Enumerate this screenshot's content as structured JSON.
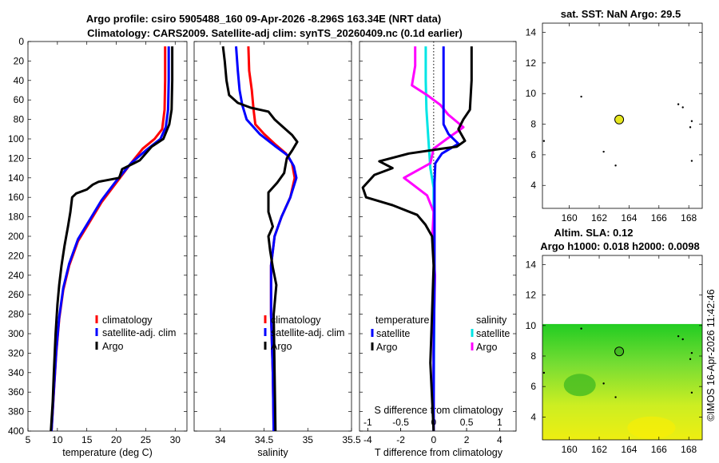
{
  "header": {
    "title1": "Argo profile: csiro 5905488_160 09-Apr-2026 -8.296S 163.34E (NRT data)",
    "title2": "Climatology: CARS2009. Satellite-adj clim: synTS_20260409.nc (0.1d earlier)"
  },
  "side_label": "©IMOS 16-Apr-2026 11:42:46",
  "colors": {
    "climatology": "#ff0000",
    "satellite": "#0000ff",
    "argo": "#000000",
    "sal_satellite": "#00e5e5",
    "sal_argo": "#ff00ff"
  },
  "chart_data": [
    {
      "id": "temperature",
      "type": "line",
      "xlabel": "temperature (deg C)",
      "ylabel": "",
      "xlim": [
        5,
        32
      ],
      "ylim": [
        0,
        400
      ],
      "xticks": [
        "5",
        "10",
        "15",
        "20",
        "25",
        "30"
      ],
      "yticks": [
        "0",
        "20",
        "40",
        "60",
        "80",
        "100",
        "120",
        "140",
        "160",
        "180",
        "200",
        "220",
        "240",
        "260",
        "280",
        "300",
        "320",
        "340",
        "360",
        "380",
        "400"
      ],
      "legend": [
        "climatology",
        "satellite-adj. clim",
        "Argo"
      ],
      "series": [
        {
          "name": "climatology",
          "color": "#ff0000",
          "points": [
            [
              28.3,
              5
            ],
            [
              28.3,
              40
            ],
            [
              28.2,
              70
            ],
            [
              27.8,
              90
            ],
            [
              26.5,
              100
            ],
            [
              24.5,
              110
            ],
            [
              22.5,
              125
            ],
            [
              20,
              145
            ],
            [
              17.5,
              165
            ],
            [
              15.5,
              185
            ],
            [
              13.5,
              205
            ],
            [
              12,
              230
            ],
            [
              11,
              255
            ],
            [
              10.3,
              285
            ],
            [
              9.8,
              320
            ],
            [
              9.4,
              360
            ],
            [
              9.0,
              400
            ]
          ]
        },
        {
          "name": "satellite-adj. clim",
          "color": "#0000ff",
          "points": [
            [
              28.9,
              5
            ],
            [
              28.9,
              40
            ],
            [
              28.8,
              70
            ],
            [
              28.4,
              88
            ],
            [
              27.5,
              100
            ],
            [
              25,
              112
            ],
            [
              22.5,
              125
            ],
            [
              20,
              143
            ],
            [
              17.5,
              163
            ],
            [
              15.5,
              183
            ],
            [
              13.5,
              203
            ],
            [
              12,
              228
            ],
            [
              11,
              253
            ],
            [
              10.3,
              283
            ],
            [
              9.8,
              318
            ],
            [
              9.4,
              358
            ],
            [
              9.0,
              400
            ]
          ]
        },
        {
          "name": "Argo",
          "color": "#000000",
          "points": [
            [
              29.5,
              5
            ],
            [
              29.5,
              40
            ],
            [
              29.4,
              70
            ],
            [
              29,
              85
            ],
            [
              28,
              100
            ],
            [
              26,
              108
            ],
            [
              25,
              115
            ],
            [
              24,
              122
            ],
            [
              23,
              125
            ],
            [
              21,
              131
            ],
            [
              20.5,
              140
            ],
            [
              17,
              144
            ],
            [
              16,
              147
            ],
            [
              15,
              152
            ],
            [
              13.2,
              156
            ],
            [
              12.5,
              160
            ],
            [
              12.2,
              175
            ],
            [
              11.8,
              190
            ],
            [
              11.2,
              210
            ],
            [
              10.7,
              230
            ],
            [
              10.3,
              250
            ],
            [
              10,
              270
            ],
            [
              9.7,
              300
            ],
            [
              9.4,
              340
            ],
            [
              9.2,
              370
            ],
            [
              8.9,
              400
            ]
          ]
        }
      ]
    },
    {
      "id": "salinity",
      "type": "line",
      "xlabel": "salinity",
      "xlim": [
        33.7,
        35.5
      ],
      "ylim": [
        0,
        400
      ],
      "xticks": [
        "34",
        "34.5",
        "35",
        "35.5"
      ],
      "legend": [
        "climatology",
        "satellite-adj. clim",
        "Argo"
      ],
      "series": [
        {
          "name": "climatology",
          "color": "#ff0000",
          "points": [
            [
              34.32,
              5
            ],
            [
              34.33,
              30
            ],
            [
              34.36,
              50
            ],
            [
              34.38,
              70
            ],
            [
              34.4,
              85
            ],
            [
              34.5,
              95
            ],
            [
              34.62,
              105
            ],
            [
              34.75,
              115
            ],
            [
              34.82,
              125
            ],
            [
              34.85,
              140
            ],
            [
              34.8,
              160
            ],
            [
              34.7,
              180
            ],
            [
              34.62,
              200
            ],
            [
              34.58,
              230
            ],
            [
              34.58,
              280
            ],
            [
              34.6,
              340
            ],
            [
              34.61,
              400
            ]
          ]
        },
        {
          "name": "satellite-adj. clim",
          "color": "#0000ff",
          "points": [
            [
              34.18,
              5
            ],
            [
              34.2,
              30
            ],
            [
              34.22,
              50
            ],
            [
              34.25,
              65
            ],
            [
              34.3,
              80
            ],
            [
              34.45,
              95
            ],
            [
              34.62,
              107
            ],
            [
              34.77,
              117
            ],
            [
              34.84,
              128
            ],
            [
              34.87,
              140
            ],
            [
              34.8,
              160
            ],
            [
              34.7,
              180
            ],
            [
              34.62,
              200
            ],
            [
              34.58,
              230
            ],
            [
              34.58,
              280
            ],
            [
              34.6,
              340
            ],
            [
              34.61,
              400
            ]
          ]
        },
        {
          "name": "Argo",
          "color": "#000000",
          "points": [
            [
              34.03,
              5
            ],
            [
              34.05,
              20
            ],
            [
              34.07,
              40
            ],
            [
              34.1,
              55
            ],
            [
              34.2,
              63
            ],
            [
              34.35,
              68
            ],
            [
              34.55,
              72
            ],
            [
              34.62,
              80
            ],
            [
              34.72,
              88
            ],
            [
              34.82,
              96
            ],
            [
              34.88,
              103
            ],
            [
              34.82,
              112
            ],
            [
              34.76,
              120
            ],
            [
              34.73,
              135
            ],
            [
              34.65,
              145
            ],
            [
              34.55,
              155
            ],
            [
              34.55,
              175
            ],
            [
              34.6,
              190
            ],
            [
              34.55,
              200
            ],
            [
              34.57,
              215
            ],
            [
              34.6,
              232
            ],
            [
              34.64,
              250
            ],
            [
              34.61,
              280
            ],
            [
              34.62,
              340
            ],
            [
              34.63,
              400
            ]
          ]
        }
      ]
    },
    {
      "id": "difference",
      "type": "line",
      "xlabel": "T difference from climatology",
      "x2label": "S difference from climatology",
      "xlim": [
        -4.5,
        5
      ],
      "ylim": [
        0,
        400
      ],
      "xticks": [
        "-4",
        "-2",
        "0",
        "2",
        "4"
      ],
      "x2ticks": [
        "-1",
        "-0.5",
        "0",
        "0.5",
        "1"
      ],
      "legend_left_title": "temperature",
      "legend_right_title": "salinity",
      "legend_left": [
        "satellite",
        "Argo"
      ],
      "legend_right": [
        "satellite",
        "Argo"
      ],
      "series": [
        {
          "name": "T satellite",
          "color": "#0000ff",
          "axis": "T",
          "points": [
            [
              0.6,
              5
            ],
            [
              0.6,
              40
            ],
            [
              0.6,
              70
            ],
            [
              0.6,
              85
            ],
            [
              0.9,
              95
            ],
            [
              1.5,
              105
            ],
            [
              0.5,
              115
            ],
            [
              0.1,
              125
            ],
            [
              0.05,
              145
            ],
            [
              0.05,
              180
            ],
            [
              0.05,
              250
            ],
            [
              0,
              320
            ],
            [
              0,
              400
            ]
          ]
        },
        {
          "name": "T Argo",
          "color": "#000000",
          "axis": "T",
          "points": [
            [
              2.3,
              5
            ],
            [
              2.3,
              40
            ],
            [
              2.2,
              70
            ],
            [
              1.8,
              80
            ],
            [
              1.5,
              90
            ],
            [
              1.9,
              102
            ],
            [
              1.4,
              108
            ],
            [
              0.5,
              110
            ],
            [
              -1.5,
              115
            ],
            [
              -3.3,
              123
            ],
            [
              -2.5,
              130
            ],
            [
              -3.6,
              137
            ],
            [
              -4.3,
              150
            ],
            [
              -4.1,
              160
            ],
            [
              -2.5,
              168
            ],
            [
              -1,
              178
            ],
            [
              -0.5,
              188
            ],
            [
              -0.1,
              200
            ],
            [
              0,
              230
            ],
            [
              -0.1,
              280
            ],
            [
              -0.2,
              330
            ],
            [
              0,
              400
            ]
          ]
        },
        {
          "name": "S satellite",
          "color": "#00e5e5",
          "axis": "S",
          "points": [
            [
              -0.12,
              5
            ],
            [
              -0.12,
              40
            ],
            [
              -0.11,
              70
            ],
            [
              -0.08,
              100
            ],
            [
              -0.05,
              130
            ],
            [
              0,
              150
            ],
            [
              0,
              200
            ],
            [
              0.01,
              260
            ],
            [
              0,
              400
            ]
          ]
        },
        {
          "name": "S Argo",
          "color": "#ff00ff",
          "axis": "S",
          "points": [
            [
              -0.28,
              5
            ],
            [
              -0.28,
              25
            ],
            [
              -0.33,
              45
            ],
            [
              -0.1,
              55
            ],
            [
              0.1,
              65
            ],
            [
              0.22,
              75
            ],
            [
              0.45,
              88
            ],
            [
              0.2,
              100
            ],
            [
              0,
              110
            ],
            [
              -0.05,
              125
            ],
            [
              -0.45,
              140
            ],
            [
              -0.1,
              158
            ],
            [
              0,
              175
            ],
            [
              -0.02,
              200
            ],
            [
              0.02,
              240
            ],
            [
              0,
              300
            ],
            [
              0,
              400
            ]
          ]
        }
      ]
    },
    {
      "id": "sst_map",
      "type": "map",
      "title": "sat. SST: NaN Argo: 29.5",
      "xlim": [
        158.2,
        168.9
      ],
      "ylim": [
        2.5,
        14.6
      ],
      "xticks": [
        "160",
        "162",
        "164",
        "166",
        "168"
      ],
      "yticks": [
        "4",
        "6",
        "8",
        "10",
        "12",
        "14"
      ],
      "argo_position": [
        163.34,
        8.3
      ]
    },
    {
      "id": "sla_map",
      "type": "map",
      "title1": "Altim. SLA: 0.12",
      "title2": "Argo h1000: 0.018 h2000: 0.0098",
      "xlim": [
        158.2,
        168.9
      ],
      "ylim": [
        2.5,
        14.6
      ],
      "xticks": [
        "160",
        "162",
        "164",
        "166",
        "168"
      ],
      "yticks": [
        "4",
        "6",
        "8",
        "10",
        "12",
        "14"
      ],
      "argo_position": [
        163.34,
        8.3
      ]
    }
  ]
}
